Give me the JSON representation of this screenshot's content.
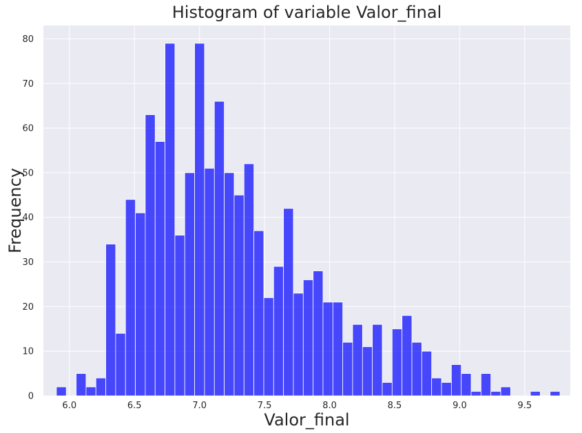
{
  "chart_data": {
    "type": "bar",
    "title": "Histogram of variable Valor_final",
    "xlabel": "Valor_final",
    "ylabel": "Frequency",
    "xlim": [
      5.8,
      9.85
    ],
    "ylim": [
      0,
      83
    ],
    "xticks": [
      "6.0",
      "6.5",
      "7.0",
      "7.5",
      "8.0",
      "8.5",
      "9.0",
      "9.5"
    ],
    "yticks": [
      "0",
      "10",
      "20",
      "30",
      "40",
      "50",
      "60",
      "70",
      "80"
    ],
    "bin_start": 5.9,
    "bin_width": 0.0759,
    "values": [
      2,
      0,
      5,
      2,
      4,
      34,
      14,
      44,
      41,
      63,
      57,
      79,
      36,
      50,
      79,
      51,
      66,
      50,
      45,
      52,
      37,
      22,
      29,
      42,
      23,
      26,
      28,
      21,
      21,
      12,
      16,
      11,
      16,
      3,
      15,
      18,
      12,
      10,
      4,
      3,
      7,
      5,
      1,
      5,
      1,
      2,
      0,
      0,
      1,
      0,
      1
    ],
    "grid": true,
    "bar_color": "#0000ff",
    "background_color": "#eaeaf2"
  }
}
